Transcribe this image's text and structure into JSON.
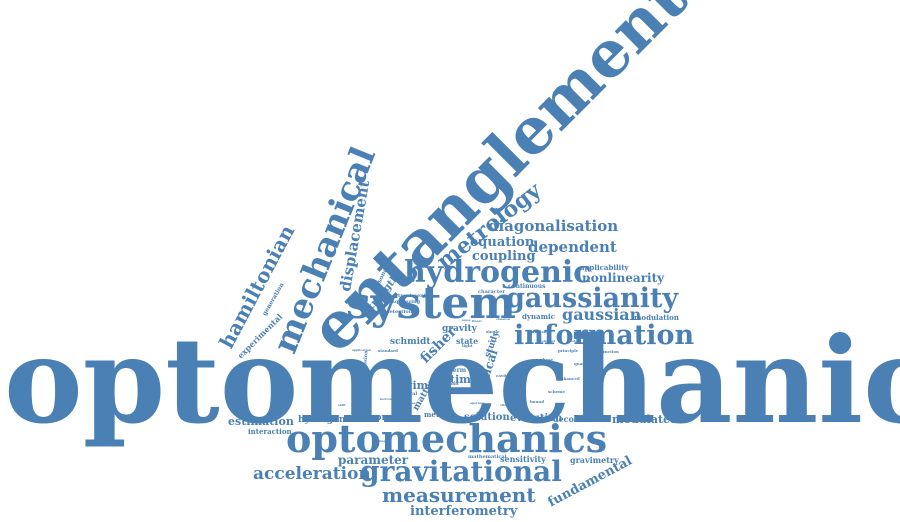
{
  "cloud": {
    "color": "#4a80b4",
    "words": [
      "optomechanical",
      "entanglement",
      "system",
      "optomechanics",
      "mechanical",
      "hydrogenic",
      "gaussianity",
      "information",
      "gravitational",
      "measurement",
      "metrology",
      "gaussian",
      "acceleration",
      "interferometry",
      "hamiltonian",
      "displacement",
      "diagonalisation",
      "dependent",
      "equation",
      "coupling",
      "nonlinearity",
      "fundamental",
      "parameter",
      "estimation",
      "hydrogen",
      "modulated",
      "evolution",
      "decoherence",
      "solution",
      "compute",
      "regime",
      "fisher",
      "schmidt",
      "gravity",
      "state",
      "time",
      "strength",
      "experimental",
      "sensitivity",
      "gravimetry",
      "interaction",
      "matter",
      "modulation",
      "applicability",
      "continuous",
      "dynamic",
      "optimal",
      "optical",
      "study",
      "generation",
      "resonance",
      "treatment",
      "character",
      "squeezing",
      "detection",
      "mathematical",
      "field",
      "term",
      "method",
      "general",
      "enhanced",
      "principle",
      "precision",
      "expression",
      "application",
      "standard",
      "single",
      "light",
      "limit",
      "order",
      "mode",
      "large",
      "cavity",
      "phase",
      "quantum",
      "potential",
      "function",
      "result",
      "scheme",
      "bound",
      "regimes",
      "motion",
      "shift",
      "rotating",
      "wave",
      "frame",
      "operator",
      "effect",
      "mass",
      "linear",
      "classical",
      "coherent",
      "model"
    ]
  }
}
